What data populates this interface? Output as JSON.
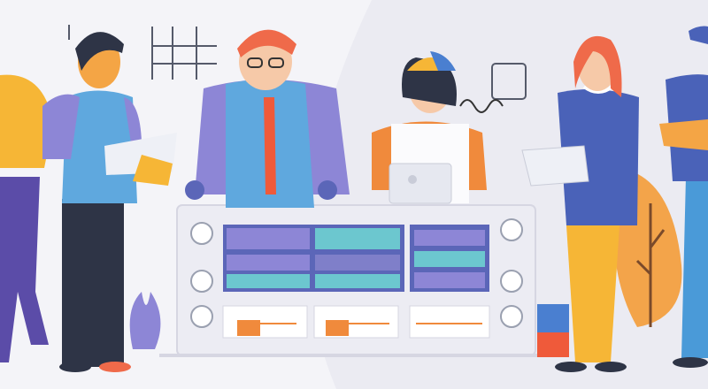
{
  "illustration": {
    "subject": "team-around-server-console",
    "colors": {
      "background": "#f4f4f8",
      "backdrop_blob": "#e9e9f1",
      "console": "#ececf3",
      "console_border": "#d6d6e2",
      "screen_purple": "#7f7fc9",
      "screen_blue": "#5b66b8",
      "screen_teal": "#6cc7cf",
      "accent_orange": "#f08a3c",
      "skin": "#f4a545",
      "skin_light": "#f6c9a8",
      "vest_blue": "#5fa8de",
      "shirt_purple": "#8d86d6",
      "navy": "#2e3446",
      "yellow": "#f6b636",
      "hair_red": "#ef6a4a",
      "tree_orange": "#f3a44a"
    }
  }
}
